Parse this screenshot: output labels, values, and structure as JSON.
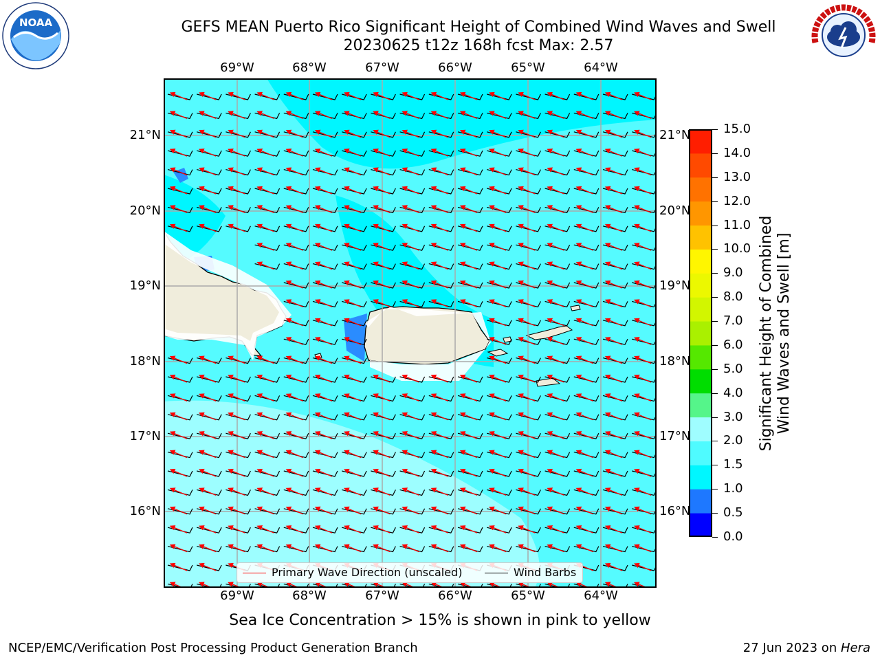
{
  "title": {
    "line1": "GEFS MEAN Puerto Rico Significant Height of Combined Wind Waves and Swell",
    "line2": "20230625 t12z 168h fcst   Max: 2.57"
  },
  "logos": {
    "left": "NOAA",
    "right": "NATIONAL WEATHER SERVICE"
  },
  "map": {
    "lon_labels": [
      "69°W",
      "68°W",
      "67°W",
      "66°W",
      "65°W",
      "64°W"
    ],
    "lat_labels": [
      "21°N",
      "20°N",
      "19°N",
      "18°N",
      "17°N",
      "16°N"
    ],
    "colors": {
      "land": "#f0eddc",
      "sea_base": "#55fbff",
      "sea_light": "#9dfeff",
      "sea_bright": "#00f6ff",
      "sea_dark": "#2a8cff"
    }
  },
  "colorbar": {
    "label": "Significant Height of Combined Wind Waves and Swell [m]",
    "label_line1": "Significant Height of Combined",
    "label_line2": "Wind Waves and Swell [m]",
    "ticks": [
      "0.0",
      "0.5",
      "1.0",
      "1.5",
      "2.0",
      "3.0",
      "4.0",
      "5.0",
      "6.0",
      "7.0",
      "8.0",
      "9.0",
      "10.0",
      "11.0",
      "12.0",
      "13.0",
      "14.0",
      "15.0"
    ],
    "colors": [
      "#0000ff",
      "#1e78ff",
      "#00f7ff",
      "#4ffbff",
      "#9ffdff",
      "#55f58a",
      "#00dd00",
      "#55e800",
      "#aaf000",
      "#d2f600",
      "#ecf800",
      "#fff600",
      "#ffc200",
      "#ff9600",
      "#ff7200",
      "#ff4a00",
      "#ff1e00"
    ]
  },
  "legend": {
    "wave_direction": "Primary Wave Direction (unscaled)",
    "wind_barbs": "Wind Barbs",
    "wave_color": "#ff0000",
    "barb_color": "#000000"
  },
  "caption": "Sea Ice Concentration > 15% is shown in pink to yellow",
  "footer": {
    "left": "NCEP/EMC/Verification Post Processing Product Generation Branch",
    "right_prefix": "27 Jun 2023 on ",
    "right_host": "Hera"
  }
}
